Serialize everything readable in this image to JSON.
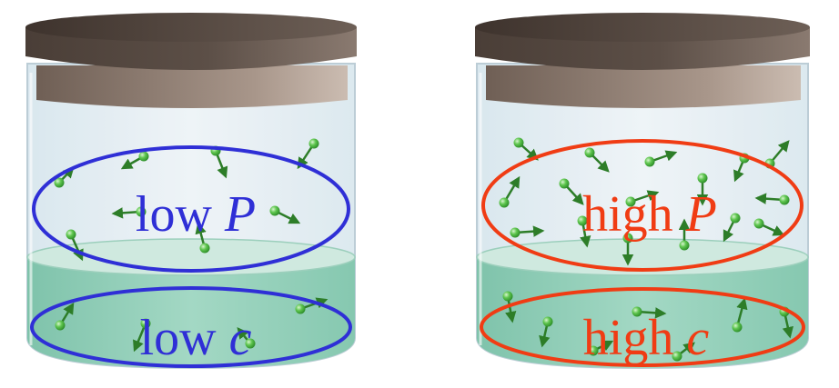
{
  "colors": {
    "low": "#2f2fd6",
    "high": "#f03c14",
    "gas_dot": "#3fae3a",
    "liquid": "#8fcfb8",
    "lid": "#5a4c44"
  },
  "jars": [
    {
      "pressure_label": {
        "prefix": "low ",
        "var": "P"
      },
      "concentration_label": {
        "prefix": "low ",
        "var": "c"
      }
    },
    {
      "pressure_label": {
        "prefix": "high ",
        "var": "P"
      },
      "concentration_label": {
        "prefix": "high ",
        "var": "c"
      }
    }
  ]
}
